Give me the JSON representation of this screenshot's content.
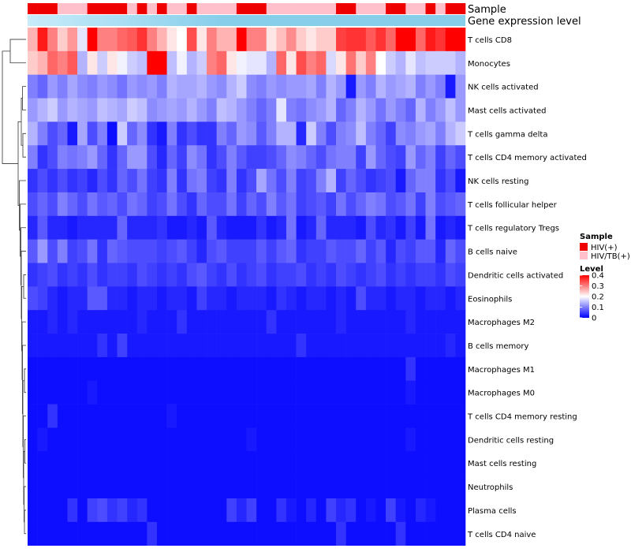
{
  "chart_data": {
    "type": "heatmap",
    "title": "",
    "annotation_titles": {
      "sample": "Sample",
      "gene": "Gene expression level"
    },
    "rows": [
      "T cells CD8",
      "Monocytes",
      "NK cells activated",
      "Mast cells activated",
      "T cells gamma delta",
      "T cells CD4 memory activated",
      "NK cells resting",
      "T cells follicular helper",
      "T cells regulatory  Tregs",
      "B cells naive",
      "Dendritic cells activated",
      "Eosinophils",
      "Macrophages M2",
      "B cells memory",
      "Macrophages M1",
      "Macrophages M0",
      "T cells CD4 memory resting",
      "Dendritic cells resting",
      "Mast cells resting",
      "Neutrophils",
      "Plasma cells",
      "T cells CD4 naive"
    ],
    "n_samples": 44,
    "sample_groups": [
      1,
      1,
      1,
      0,
      0,
      0,
      1,
      1,
      1,
      1,
      0,
      1,
      0,
      1,
      0,
      0,
      1,
      0,
      0,
      0,
      0,
      1,
      1,
      1,
      0,
      0,
      0,
      0,
      0,
      0,
      0,
      1,
      1,
      0,
      0,
      0,
      1,
      1,
      0,
      0,
      1,
      0,
      1,
      1
    ],
    "color_scale": {
      "low": "#0000ff",
      "mid": "#ffffff",
      "high": "#ff0000",
      "min": 0,
      "mid_value": 0.2,
      "max": 0.4
    },
    "values": [
      [
        0.26,
        0.38,
        0.3,
        0.24,
        0.28,
        0.18,
        0.4,
        0.3,
        0.3,
        0.32,
        0.33,
        0.36,
        0.3,
        0.26,
        0.22,
        0.2,
        0.34,
        0.22,
        0.3,
        0.26,
        0.26,
        0.4,
        0.3,
        0.3,
        0.22,
        0.25,
        0.29,
        0.24,
        0.22,
        0.24,
        0.24,
        0.35,
        0.36,
        0.36,
        0.33,
        0.36,
        0.32,
        0.4,
        0.4,
        0.32,
        0.38,
        0.36,
        0.4,
        0.4
      ],
      [
        0.24,
        0.26,
        0.32,
        0.3,
        0.33,
        0.14,
        0.22,
        0.16,
        0.22,
        0.19,
        0.16,
        0.15,
        0.4,
        0.4,
        0.15,
        0.19,
        0.14,
        0.16,
        0.3,
        0.32,
        0.22,
        0.19,
        0.18,
        0.18,
        0.14,
        0.32,
        0.22,
        0.34,
        0.3,
        0.32,
        0.17,
        0.22,
        0.31,
        0.24,
        0.3,
        0.2,
        0.16,
        0.14,
        0.18,
        0.15,
        0.16,
        0.16,
        0.16,
        0.14
      ],
      [
        0.1,
        0.08,
        0.12,
        0.1,
        0.13,
        0.11,
        0.1,
        0.12,
        0.11,
        0.09,
        0.12,
        0.11,
        0.12,
        0.1,
        0.14,
        0.13,
        0.13,
        0.14,
        0.12,
        0.11,
        0.14,
        0.16,
        0.11,
        0.1,
        0.12,
        0.11,
        0.12,
        0.12,
        0.13,
        0.1,
        0.14,
        0.12,
        0.02,
        0.12,
        0.1,
        0.14,
        0.12,
        0.13,
        0.14,
        0.1,
        0.12,
        0.1,
        0.02,
        0.12
      ],
      [
        0.12,
        0.14,
        0.16,
        0.12,
        0.14,
        0.13,
        0.12,
        0.15,
        0.14,
        0.13,
        0.16,
        0.15,
        0.11,
        0.12,
        0.13,
        0.12,
        0.14,
        0.12,
        0.1,
        0.15,
        0.14,
        0.12,
        0.1,
        0.08,
        0.1,
        0.18,
        0.1,
        0.09,
        0.11,
        0.12,
        0.14,
        0.08,
        0.1,
        0.14,
        0.12,
        0.09,
        0.12,
        0.1,
        0.08,
        0.14,
        0.1,
        0.12,
        0.15,
        0.12
      ],
      [
        0.14,
        0.1,
        0.06,
        0.08,
        0.02,
        0.13,
        0.06,
        0.1,
        0.01,
        0.16,
        0.08,
        0.11,
        0.04,
        0.02,
        0.1,
        0.04,
        0.06,
        0.04,
        0.04,
        0.1,
        0.08,
        0.12,
        0.11,
        0.07,
        0.1,
        0.14,
        0.14,
        0.03,
        0.16,
        0.1,
        0.06,
        0.1,
        0.11,
        0.15,
        0.1,
        0.08,
        0.05,
        0.11,
        0.1,
        0.12,
        0.13,
        0.1,
        0.14,
        0.16
      ],
      [
        0.1,
        0.04,
        0.06,
        0.1,
        0.09,
        0.1,
        0.12,
        0.08,
        0.04,
        0.08,
        0.12,
        0.12,
        0.06,
        0.03,
        0.08,
        0.05,
        0.11,
        0.09,
        0.04,
        0.06,
        0.1,
        0.07,
        0.05,
        0.05,
        0.06,
        0.08,
        0.11,
        0.1,
        0.08,
        0.06,
        0.09,
        0.1,
        0.1,
        0.05,
        0.12,
        0.08,
        0.06,
        0.05,
        0.12,
        0.08,
        0.1,
        0.05,
        0.08,
        0.06
      ],
      [
        0.04,
        0.06,
        0.04,
        0.06,
        0.04,
        0.05,
        0.03,
        0.06,
        0.04,
        0.08,
        0.06,
        0.09,
        0.05,
        0.04,
        0.1,
        0.04,
        0.09,
        0.1,
        0.05,
        0.04,
        0.1,
        0.04,
        0.06,
        0.13,
        0.09,
        0.06,
        0.1,
        0.05,
        0.06,
        0.1,
        0.14,
        0.05,
        0.08,
        0.06,
        0.04,
        0.05,
        0.06,
        0.02,
        0.08,
        0.1,
        0.1,
        0.04,
        0.06,
        0.02
      ],
      [
        0.06,
        0.08,
        0.06,
        0.1,
        0.08,
        0.06,
        0.09,
        0.07,
        0.08,
        0.06,
        0.09,
        0.08,
        0.05,
        0.06,
        0.09,
        0.06,
        0.04,
        0.08,
        0.06,
        0.06,
        0.09,
        0.05,
        0.08,
        0.06,
        0.1,
        0.07,
        0.09,
        0.05,
        0.06,
        0.07,
        0.05,
        0.09,
        0.06,
        0.08,
        0.1,
        0.09,
        0.06,
        0.07,
        0.09,
        0.05,
        0.1,
        0.06,
        0.07,
        0.08
      ],
      [
        0.03,
        0.07,
        0.03,
        0.03,
        0.02,
        0.03,
        0.03,
        0.03,
        0.03,
        0.08,
        0.03,
        0.03,
        0.03,
        0.04,
        0.02,
        0.02,
        0.03,
        0.02,
        0.07,
        0.03,
        0.02,
        0.02,
        0.02,
        0.04,
        0.02,
        0.03,
        0.09,
        0.02,
        0.03,
        0.08,
        0.03,
        0.03,
        0.03,
        0.02,
        0.06,
        0.03,
        0.04,
        0.02,
        0.05,
        0.02,
        0.09,
        0.02,
        0.03,
        0.02
      ],
      [
        0.07,
        0.12,
        0.06,
        0.1,
        0.05,
        0.06,
        0.09,
        0.04,
        0.08,
        0.07,
        0.06,
        0.06,
        0.06,
        0.05,
        0.06,
        0.07,
        0.05,
        0.03,
        0.06,
        0.07,
        0.05,
        0.05,
        0.05,
        0.07,
        0.05,
        0.07,
        0.08,
        0.04,
        0.05,
        0.05,
        0.07,
        0.06,
        0.06,
        0.08,
        0.05,
        0.07,
        0.03,
        0.06,
        0.05,
        0.07,
        0.07,
        0.03,
        0.08,
        0.06
      ],
      [
        0.04,
        0.05,
        0.06,
        0.04,
        0.05,
        0.04,
        0.06,
        0.04,
        0.05,
        0.05,
        0.04,
        0.06,
        0.05,
        0.04,
        0.05,
        0.04,
        0.06,
        0.07,
        0.05,
        0.04,
        0.06,
        0.04,
        0.05,
        0.06,
        0.04,
        0.05,
        0.05,
        0.06,
        0.04,
        0.05,
        0.04,
        0.06,
        0.05,
        0.04,
        0.05,
        0.06,
        0.04,
        0.05,
        0.04,
        0.05,
        0.05,
        0.04,
        0.06,
        0.05
      ],
      [
        0.06,
        0.05,
        0.03,
        0.02,
        0.03,
        0.03,
        0.07,
        0.07,
        0.03,
        0.03,
        0.02,
        0.03,
        0.03,
        0.02,
        0.03,
        0.03,
        0.02,
        0.05,
        0.03,
        0.03,
        0.02,
        0.03,
        0.03,
        0.03,
        0.02,
        0.04,
        0.03,
        0.02,
        0.03,
        0.03,
        0.02,
        0.03,
        0.02,
        0.06,
        0.03,
        0.03,
        0.02,
        0.03,
        0.03,
        0.02,
        0.03,
        0.03,
        0.02,
        0.03
      ],
      [
        0.02,
        0.02,
        0.03,
        0.02,
        0.03,
        0.02,
        0.02,
        0.02,
        0.02,
        0.02,
        0.02,
        0.03,
        0.02,
        0.02,
        0.02,
        0.04,
        0.02,
        0.02,
        0.02,
        0.02,
        0.02,
        0.02,
        0.02,
        0.02,
        0.04,
        0.02,
        0.02,
        0.02,
        0.02,
        0.02,
        0.02,
        0.03,
        0.02,
        0.02,
        0.02,
        0.02,
        0.02,
        0.02,
        0.03,
        0.02,
        0.02,
        0.02,
        0.02,
        0.02
      ],
      [
        0.02,
        0.02,
        0.02,
        0.02,
        0.02,
        0.02,
        0.02,
        0.04,
        0.02,
        0.05,
        0.02,
        0.02,
        0.02,
        0.02,
        0.02,
        0.02,
        0.02,
        0.02,
        0.02,
        0.02,
        0.02,
        0.02,
        0.02,
        0.02,
        0.02,
        0.02,
        0.02,
        0.04,
        0.02,
        0.02,
        0.02,
        0.02,
        0.02,
        0.02,
        0.02,
        0.02,
        0.02,
        0.02,
        0.02,
        0.02,
        0.02,
        0.02,
        0.03,
        0.02
      ],
      [
        0.01,
        0.01,
        0.01,
        0.01,
        0.01,
        0.01,
        0.01,
        0.01,
        0.01,
        0.01,
        0.01,
        0.01,
        0.01,
        0.01,
        0.01,
        0.01,
        0.01,
        0.01,
        0.01,
        0.01,
        0.01,
        0.01,
        0.01,
        0.01,
        0.01,
        0.01,
        0.01,
        0.01,
        0.01,
        0.01,
        0.01,
        0.01,
        0.01,
        0.01,
        0.01,
        0.01,
        0.01,
        0.01,
        0.04,
        0.01,
        0.01,
        0.01,
        0.01,
        0.01
      ],
      [
        0.01,
        0.01,
        0.01,
        0.01,
        0.01,
        0.01,
        0.02,
        0.01,
        0.01,
        0.01,
        0.01,
        0.01,
        0.01,
        0.01,
        0.01,
        0.01,
        0.01,
        0.01,
        0.01,
        0.01,
        0.01,
        0.01,
        0.01,
        0.01,
        0.01,
        0.01,
        0.01,
        0.01,
        0.01,
        0.01,
        0.01,
        0.01,
        0.01,
        0.01,
        0.01,
        0.01,
        0.01,
        0.01,
        0.02,
        0.01,
        0.01,
        0.01,
        0.01,
        0.01
      ],
      [
        0.01,
        0.01,
        0.04,
        0.01,
        0.01,
        0.01,
        0.01,
        0.01,
        0.01,
        0.01,
        0.01,
        0.01,
        0.01,
        0.01,
        0.02,
        0.01,
        0.01,
        0.01,
        0.01,
        0.01,
        0.01,
        0.01,
        0.01,
        0.01,
        0.01,
        0.01,
        0.01,
        0.01,
        0.01,
        0.01,
        0.01,
        0.01,
        0.01,
        0.01,
        0.01,
        0.01,
        0.01,
        0.01,
        0.01,
        0.01,
        0.01,
        0.01,
        0.01,
        0.01
      ],
      [
        0.01,
        0.02,
        0.01,
        0.01,
        0.01,
        0.01,
        0.01,
        0.01,
        0.01,
        0.01,
        0.01,
        0.01,
        0.01,
        0.01,
        0.01,
        0.01,
        0.01,
        0.01,
        0.01,
        0.01,
        0.01,
        0.01,
        0.02,
        0.01,
        0.01,
        0.01,
        0.01,
        0.01,
        0.01,
        0.01,
        0.01,
        0.01,
        0.01,
        0.01,
        0.01,
        0.01,
        0.01,
        0.01,
        0.02,
        0.01,
        0.01,
        0.01,
        0.01,
        0.01
      ],
      [
        0.01,
        0.01,
        0.01,
        0.01,
        0.01,
        0.01,
        0.01,
        0.01,
        0.01,
        0.01,
        0.01,
        0.01,
        0.01,
        0.01,
        0.01,
        0.01,
        0.01,
        0.01,
        0.01,
        0.01,
        0.01,
        0.01,
        0.01,
        0.01,
        0.01,
        0.01,
        0.01,
        0.01,
        0.01,
        0.01,
        0.01,
        0.01,
        0.01,
        0.01,
        0.01,
        0.01,
        0.01,
        0.01,
        0.01,
        0.01,
        0.01,
        0.01,
        0.01,
        0.01
      ],
      [
        0.01,
        0.01,
        0.01,
        0.01,
        0.01,
        0.01,
        0.01,
        0.01,
        0.01,
        0.01,
        0.01,
        0.01,
        0.01,
        0.01,
        0.01,
        0.01,
        0.01,
        0.01,
        0.01,
        0.01,
        0.01,
        0.01,
        0.01,
        0.01,
        0.01,
        0.01,
        0.01,
        0.01,
        0.01,
        0.01,
        0.01,
        0.01,
        0.01,
        0.01,
        0.01,
        0.01,
        0.01,
        0.01,
        0.01,
        0.01,
        0.01,
        0.01,
        0.01,
        0.01
      ],
      [
        0.01,
        0.01,
        0.01,
        0.01,
        0.04,
        0.01,
        0.05,
        0.06,
        0.04,
        0.05,
        0.03,
        0.04,
        0.01,
        0.01,
        0.01,
        0.01,
        0.01,
        0.01,
        0.01,
        0.01,
        0.05,
        0.03,
        0.05,
        0.01,
        0.01,
        0.04,
        0.02,
        0.01,
        0.03,
        0.01,
        0.05,
        0.03,
        0.04,
        0.01,
        0.02,
        0.01,
        0.05,
        0.02,
        0.01,
        0.03,
        0.02,
        0.01,
        0.01,
        0.01
      ],
      [
        0.01,
        0.01,
        0.01,
        0.01,
        0.01,
        0.01,
        0.01,
        0.01,
        0.01,
        0.01,
        0.01,
        0.01,
        0.04,
        0.01,
        0.01,
        0.01,
        0.01,
        0.01,
        0.01,
        0.01,
        0.01,
        0.01,
        0.01,
        0.01,
        0.01,
        0.01,
        0.01,
        0.01,
        0.01,
        0.01,
        0.01,
        0.04,
        0.01,
        0.01,
        0.01,
        0.01,
        0.01,
        0.04,
        0.01,
        0.01,
        0.01,
        0.01,
        0.01,
        0.01
      ]
    ],
    "legend": {
      "sample_title": "Sample",
      "sample_entries": [
        {
          "label": "HIV(+)",
          "color": "#ee0000"
        },
        {
          "label": "HIV/TB(+)",
          "color": "#ffc0cb"
        }
      ],
      "level_title": "Level",
      "level_ticks": [
        "0.4",
        "0.3",
        "0.2",
        "0.1",
        "0"
      ],
      "level_tick_values": [
        0.4,
        0.3,
        0.2,
        0.1,
        0
      ]
    },
    "gene_bar_colors": [
      "#c8ecfa",
      "#87ceeb"
    ]
  }
}
